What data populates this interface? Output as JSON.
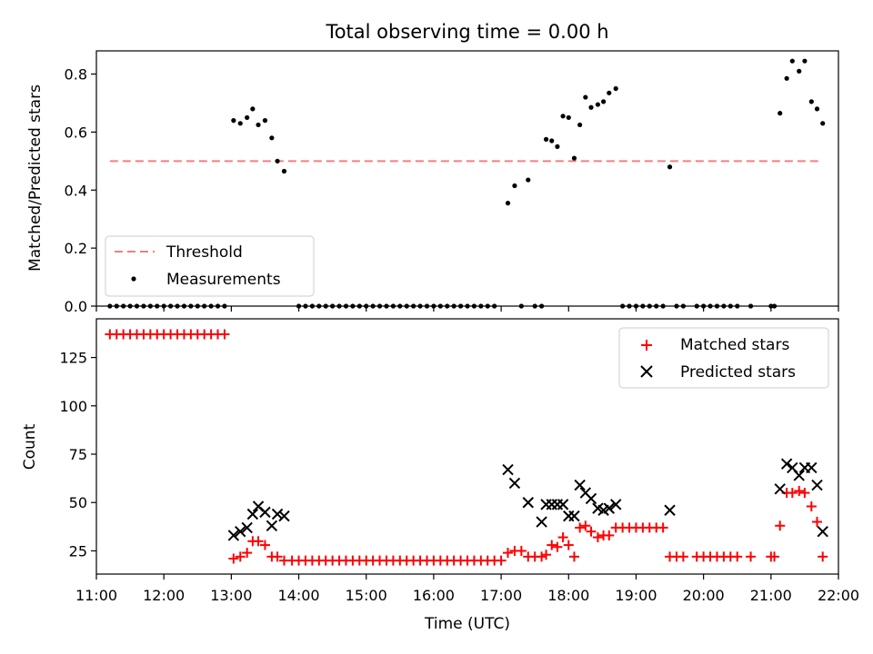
{
  "chart_data": [
    {
      "type": "scatter",
      "title": "Total observing time = 0.00 h",
      "xlabel": "",
      "ylabel": "Matched/Predicted stars",
      "xlim": [
        "11:00",
        "22:00"
      ],
      "ylim": [
        0,
        0.88
      ],
      "yticks": [
        "0.0",
        "0.2",
        "0.4",
        "0.6",
        "0.8"
      ],
      "grid": false,
      "legend_position": "lower-left",
      "threshold": {
        "name": "Threshold",
        "y": 0.5,
        "x_start": "11:12",
        "x_end": "21:42",
        "color": "#f08080"
      },
      "series": [
        {
          "name": "Measurements",
          "color": "#000000",
          "marker": "dot",
          "points": [
            [
              "11:12",
              0
            ],
            [
              "11:18",
              0
            ],
            [
              "11:24",
              0
            ],
            [
              "11:30",
              0
            ],
            [
              "11:36",
              0
            ],
            [
              "11:42",
              0
            ],
            [
              "11:48",
              0
            ],
            [
              "11:54",
              0
            ],
            [
              "12:00",
              0
            ],
            [
              "12:06",
              0
            ],
            [
              "12:12",
              0
            ],
            [
              "12:18",
              0
            ],
            [
              "12:24",
              0
            ],
            [
              "12:30",
              0
            ],
            [
              "12:36",
              0
            ],
            [
              "12:42",
              0
            ],
            [
              "12:48",
              0
            ],
            [
              "12:54",
              0
            ],
            [
              "13:02",
              0.64
            ],
            [
              "13:08",
              0.63
            ],
            [
              "13:14",
              0.65
            ],
            [
              "13:19",
              0.68
            ],
            [
              "13:24",
              0.625
            ],
            [
              "13:30",
              0.64
            ],
            [
              "13:36",
              0.58
            ],
            [
              "13:41",
              0.5
            ],
            [
              "13:47",
              0.465
            ],
            [
              "14:00",
              0
            ],
            [
              "14:06",
              0
            ],
            [
              "14:12",
              0
            ],
            [
              "14:18",
              0
            ],
            [
              "14:24",
              0
            ],
            [
              "14:30",
              0
            ],
            [
              "14:36",
              0
            ],
            [
              "14:42",
              0
            ],
            [
              "14:48",
              0
            ],
            [
              "14:54",
              0
            ],
            [
              "15:00",
              0
            ],
            [
              "15:06",
              0
            ],
            [
              "15:12",
              0
            ],
            [
              "15:18",
              0
            ],
            [
              "15:24",
              0
            ],
            [
              "15:30",
              0
            ],
            [
              "15:36",
              0
            ],
            [
              "15:42",
              0
            ],
            [
              "15:48",
              0
            ],
            [
              "15:54",
              0
            ],
            [
              "16:00",
              0
            ],
            [
              "16:06",
              0
            ],
            [
              "16:12",
              0
            ],
            [
              "16:18",
              0
            ],
            [
              "16:24",
              0
            ],
            [
              "16:30",
              0
            ],
            [
              "16:36",
              0
            ],
            [
              "16:42",
              0
            ],
            [
              "16:48",
              0
            ],
            [
              "16:54",
              0
            ],
            [
              "17:06",
              0.355
            ],
            [
              "17:12",
              0.415
            ],
            [
              "17:18",
              0
            ],
            [
              "17:24",
              0.435
            ],
            [
              "17:30",
              0
            ],
            [
              "17:36",
              0
            ],
            [
              "17:40",
              0.575
            ],
            [
              "17:45",
              0.57
            ],
            [
              "17:50",
              0.55
            ],
            [
              "17:55",
              0.655
            ],
            [
              "18:00",
              0.65
            ],
            [
              "18:05",
              0.51
            ],
            [
              "18:10",
              0.625
            ],
            [
              "18:15",
              0.72
            ],
            [
              "18:20",
              0.685
            ],
            [
              "18:26",
              0.695
            ],
            [
              "18:31",
              0.705
            ],
            [
              "18:36",
              0.735
            ],
            [
              "18:42",
              0.75
            ],
            [
              "18:48",
              0
            ],
            [
              "18:54",
              0
            ],
            [
              "19:00",
              0
            ],
            [
              "19:06",
              0
            ],
            [
              "19:12",
              0
            ],
            [
              "19:18",
              0
            ],
            [
              "19:24",
              0
            ],
            [
              "19:30",
              0.48
            ],
            [
              "19:36",
              0
            ],
            [
              "19:42",
              0
            ],
            [
              "19:54",
              0
            ],
            [
              "20:00",
              0
            ],
            [
              "20:06",
              0
            ],
            [
              "20:12",
              0
            ],
            [
              "20:18",
              0
            ],
            [
              "20:24",
              0
            ],
            [
              "20:30",
              0
            ],
            [
              "20:42",
              0
            ],
            [
              "21:00",
              0
            ],
            [
              "21:03",
              0
            ],
            [
              "21:08",
              0.665
            ],
            [
              "21:14",
              0.785
            ],
            [
              "21:19",
              0.845
            ],
            [
              "21:25",
              0.81
            ],
            [
              "21:30",
              0.845
            ],
            [
              "21:36",
              0.705
            ],
            [
              "21:41",
              0.68
            ],
            [
              "21:46",
              0.63
            ]
          ]
        }
      ]
    },
    {
      "type": "scatter",
      "title": "",
      "xlabel": "Time (UTC)",
      "ylabel": "Count",
      "xlim": [
        "11:00",
        "22:00"
      ],
      "xticks": [
        "11:00",
        "12:00",
        "13:00",
        "14:00",
        "15:00",
        "16:00",
        "17:00",
        "18:00",
        "19:00",
        "20:00",
        "21:00",
        "22:00"
      ],
      "ylim": [
        13,
        145
      ],
      "yticks": [
        "25",
        "50",
        "75",
        "100",
        "125"
      ],
      "grid": false,
      "legend_position": "upper-right",
      "series": [
        {
          "name": "Matched stars",
          "color": "#ff0000",
          "marker": "plus",
          "points": [
            [
              "11:12",
              137
            ],
            [
              "11:18",
              137
            ],
            [
              "11:24",
              137
            ],
            [
              "11:30",
              137
            ],
            [
              "11:36",
              137
            ],
            [
              "11:42",
              137
            ],
            [
              "11:48",
              137
            ],
            [
              "11:54",
              137
            ],
            [
              "12:00",
              137
            ],
            [
              "12:06",
              137
            ],
            [
              "12:12",
              137
            ],
            [
              "12:18",
              137
            ],
            [
              "12:24",
              137
            ],
            [
              "12:30",
              137
            ],
            [
              "12:36",
              137
            ],
            [
              "12:42",
              137
            ],
            [
              "12:48",
              137
            ],
            [
              "12:54",
              137
            ],
            [
              "13:02",
              21
            ],
            [
              "13:08",
              22
            ],
            [
              "13:14",
              24
            ],
            [
              "13:19",
              30
            ],
            [
              "13:24",
              30
            ],
            [
              "13:30",
              28
            ],
            [
              "13:36",
              22
            ],
            [
              "13:41",
              22
            ],
            [
              "13:47",
              20
            ],
            [
              "13:54",
              20
            ],
            [
              "14:00",
              20
            ],
            [
              "14:06",
              20
            ],
            [
              "14:12",
              20
            ],
            [
              "14:18",
              20
            ],
            [
              "14:24",
              20
            ],
            [
              "14:30",
              20
            ],
            [
              "14:36",
              20
            ],
            [
              "14:42",
              20
            ],
            [
              "14:48",
              20
            ],
            [
              "14:54",
              20
            ],
            [
              "15:00",
              20
            ],
            [
              "15:06",
              20
            ],
            [
              "15:12",
              20
            ],
            [
              "15:18",
              20
            ],
            [
              "15:24",
              20
            ],
            [
              "15:30",
              20
            ],
            [
              "15:36",
              20
            ],
            [
              "15:42",
              20
            ],
            [
              "15:48",
              20
            ],
            [
              "15:54",
              20
            ],
            [
              "16:00",
              20
            ],
            [
              "16:06",
              20
            ],
            [
              "16:12",
              20
            ],
            [
              "16:18",
              20
            ],
            [
              "16:24",
              20
            ],
            [
              "16:30",
              20
            ],
            [
              "16:36",
              20
            ],
            [
              "16:42",
              20
            ],
            [
              "16:48",
              20
            ],
            [
              "16:54",
              20
            ],
            [
              "17:00",
              20
            ],
            [
              "17:06",
              24
            ],
            [
              "17:12",
              25
            ],
            [
              "17:18",
              25
            ],
            [
              "17:24",
              22
            ],
            [
              "17:30",
              22
            ],
            [
              "17:36",
              22
            ],
            [
              "17:40",
              23
            ],
            [
              "17:45",
              28
            ],
            [
              "17:50",
              27
            ],
            [
              "17:55",
              32
            ],
            [
              "18:00",
              28
            ],
            [
              "18:05",
              22
            ],
            [
              "18:10",
              37
            ],
            [
              "18:15",
              38
            ],
            [
              "18:20",
              35
            ],
            [
              "18:26",
              32
            ],
            [
              "18:31",
              33
            ],
            [
              "18:36",
              33
            ],
            [
              "18:42",
              37
            ],
            [
              "18:48",
              37
            ],
            [
              "18:54",
              37
            ],
            [
              "19:00",
              37
            ],
            [
              "19:06",
              37
            ],
            [
              "19:12",
              37
            ],
            [
              "19:18",
              37
            ],
            [
              "19:24",
              37
            ],
            [
              "19:30",
              22
            ],
            [
              "19:36",
              22
            ],
            [
              "19:42",
              22
            ],
            [
              "19:54",
              22
            ],
            [
              "20:00",
              22
            ],
            [
              "20:06",
              22
            ],
            [
              "20:12",
              22
            ],
            [
              "20:18",
              22
            ],
            [
              "20:24",
              22
            ],
            [
              "20:30",
              22
            ],
            [
              "20:42",
              22
            ],
            [
              "21:00",
              22
            ],
            [
              "21:03",
              22
            ],
            [
              "21:08",
              38
            ],
            [
              "21:14",
              55
            ],
            [
              "21:19",
              55
            ],
            [
              "21:25",
              56
            ],
            [
              "21:30",
              55
            ],
            [
              "21:36",
              48
            ],
            [
              "21:41",
              40
            ],
            [
              "21:46",
              22
            ]
          ]
        },
        {
          "name": "Predicted stars",
          "color": "#000000",
          "marker": "x",
          "points": [
            [
              "13:02",
              33
            ],
            [
              "13:08",
              35
            ],
            [
              "13:14",
              37
            ],
            [
              "13:19",
              44
            ],
            [
              "13:24",
              48
            ],
            [
              "13:30",
              45
            ],
            [
              "13:36",
              38
            ],
            [
              "13:41",
              44
            ],
            [
              "13:47",
              43
            ],
            [
              "17:06",
              67
            ],
            [
              "17:12",
              60
            ],
            [
              "17:24",
              50
            ],
            [
              "17:36",
              40
            ],
            [
              "17:40",
              49
            ],
            [
              "17:45",
              49
            ],
            [
              "17:50",
              49
            ],
            [
              "17:55",
              49
            ],
            [
              "18:00",
              43
            ],
            [
              "18:05",
              43
            ],
            [
              "18:10",
              59
            ],
            [
              "18:15",
              55
            ],
            [
              "18:20",
              52
            ],
            [
              "18:26",
              47
            ],
            [
              "18:31",
              46
            ],
            [
              "18:36",
              47
            ],
            [
              "18:42",
              49
            ],
            [
              "19:30",
              46
            ],
            [
              "21:08",
              57
            ],
            [
              "21:14",
              70
            ],
            [
              "21:19",
              68
            ],
            [
              "21:25",
              64
            ],
            [
              "21:30",
              68
            ],
            [
              "21:36",
              68
            ],
            [
              "21:41",
              59
            ],
            [
              "21:46",
              35
            ]
          ]
        }
      ]
    }
  ]
}
